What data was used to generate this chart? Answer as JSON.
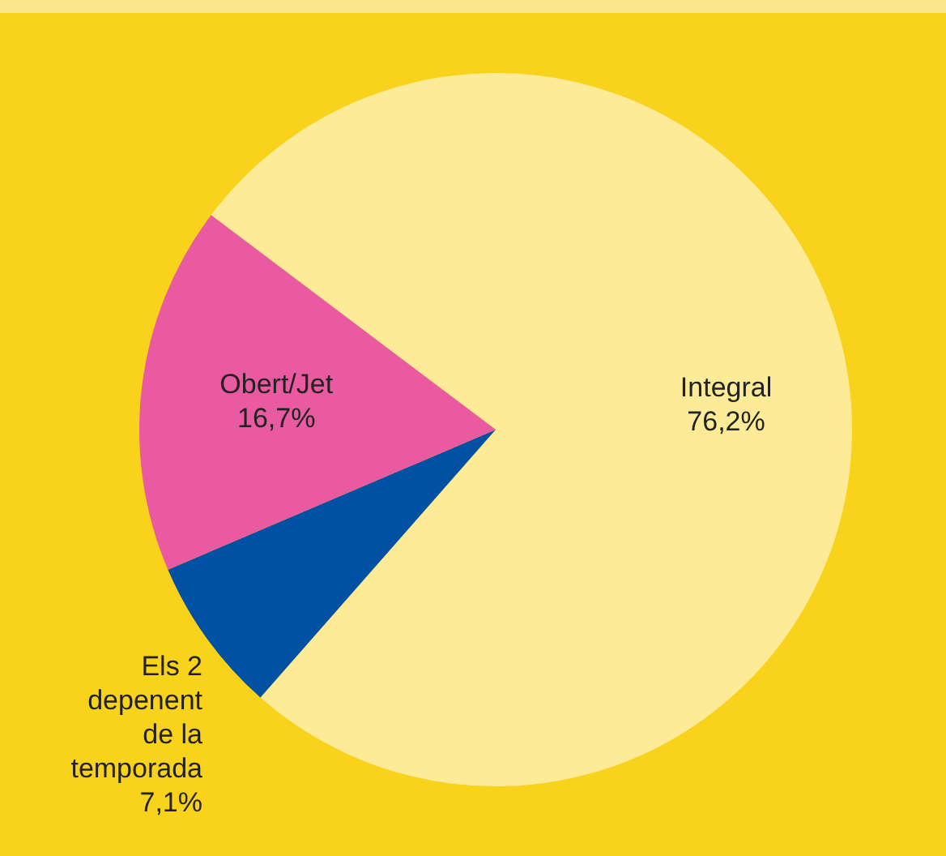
{
  "chart_data": {
    "type": "pie",
    "categories": [
      "Integral",
      "Els 2 depenent de la temporada",
      "Obert/Jet"
    ],
    "values": [
      76.2,
      7.1,
      16.7
    ],
    "colors": [
      "#feeb97",
      "#0050a3",
      "#e95aa0"
    ],
    "value_labels": [
      "76,2%",
      "7,1%",
      "16,7%"
    ],
    "legend": false
  }
}
